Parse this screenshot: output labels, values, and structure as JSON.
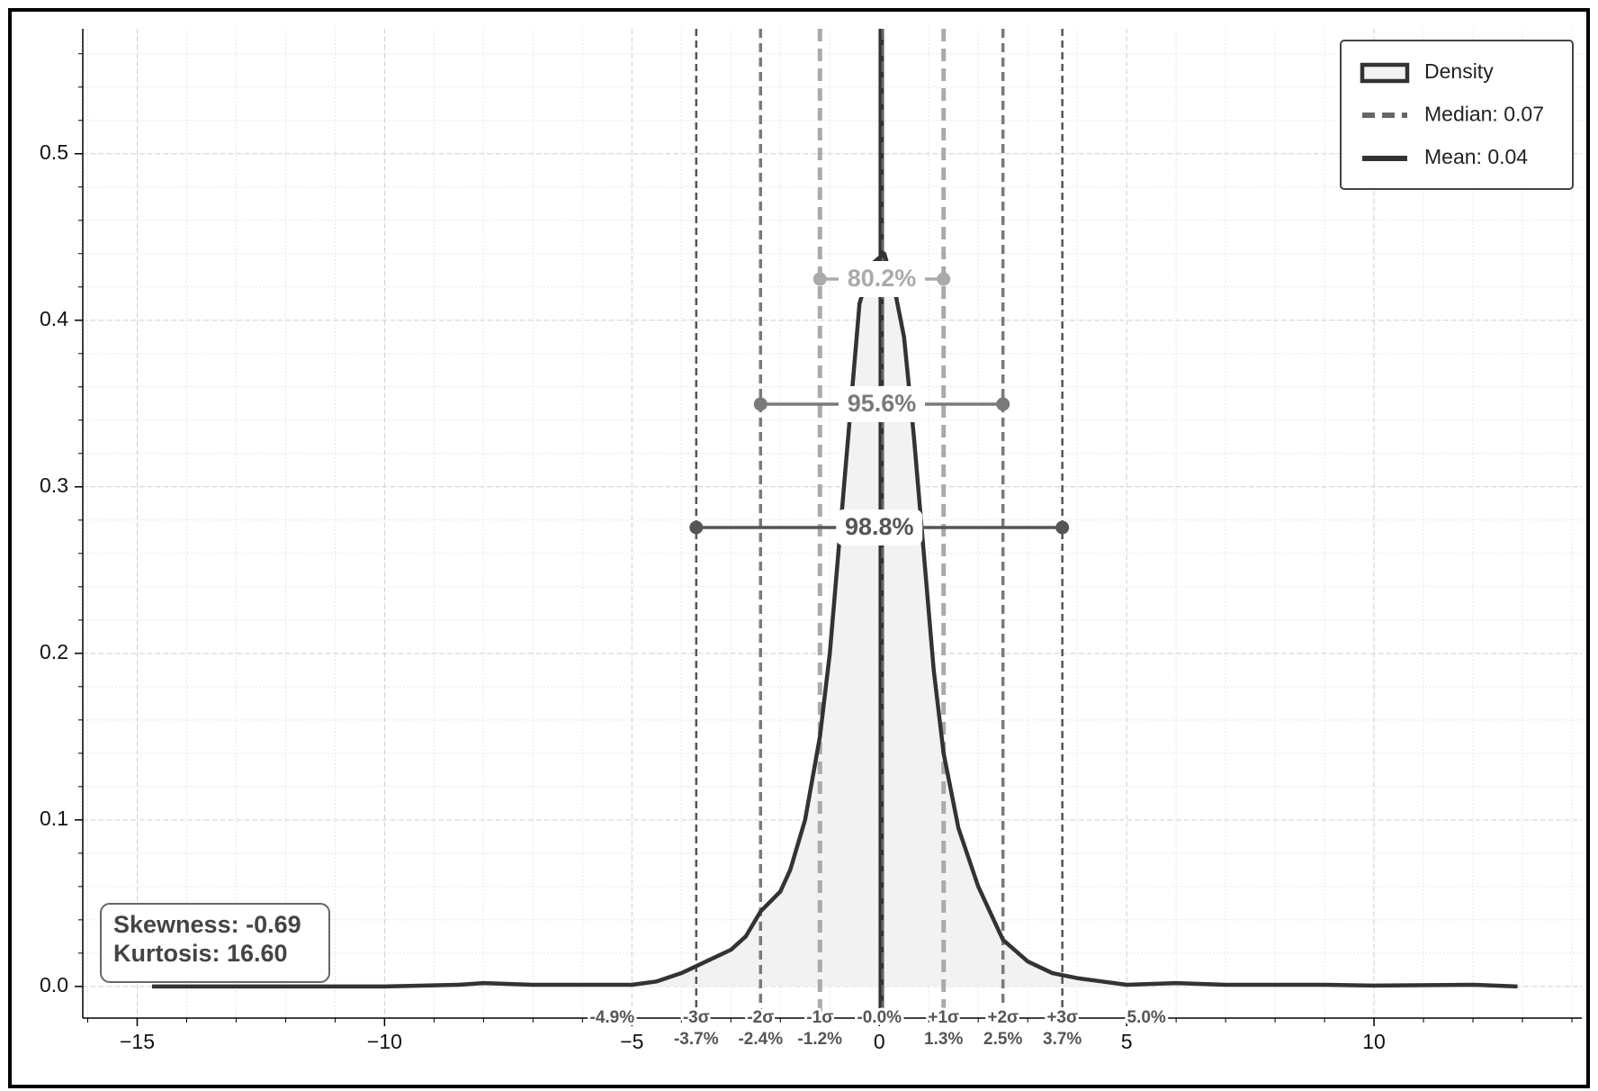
{
  "chart_data": {
    "type": "density",
    "xlim": [
      -16.1,
      14.2
    ],
    "ylim": [
      -0.019,
      0.575
    ],
    "xticks": [
      {
        "value": -15,
        "label": "−15"
      },
      {
        "value": -10,
        "label": "−10"
      },
      {
        "value": -5,
        "label": "−5"
      },
      0,
      5,
      10
    ],
    "yticks": [
      {
        "value": 0,
        "label": "0.0"
      },
      0.1,
      0.2,
      0.3,
      0.4,
      0.5
    ],
    "grid": true,
    "legend_loc": "upper right",
    "density": {
      "name": "Density",
      "color": "#333333",
      "fill": "#f2f2f2",
      "x": [
        -14.7,
        -12,
        -10,
        -8.5,
        -8,
        -7,
        -6,
        -5,
        -4.5,
        -4,
        -3.5,
        -3,
        -2.7,
        -2.4,
        -2,
        -1.8,
        -1.5,
        -1.2,
        -1,
        -0.8,
        -0.6,
        -0.4,
        -0.3,
        -0.1,
        0.1,
        0.3,
        0.5,
        0.7,
        0.9,
        1.1,
        1.3,
        1.6,
        2,
        2.5,
        3,
        3.5,
        4,
        4.5,
        5,
        6,
        7,
        8,
        9,
        10,
        12,
        12.9
      ],
      "values": [
        0,
        0,
        0,
        0.001,
        0.002,
        0.001,
        0.001,
        0.001,
        0.003,
        0.008,
        0.015,
        0.022,
        0.03,
        0.045,
        0.057,
        0.07,
        0.1,
        0.15,
        0.2,
        0.27,
        0.34,
        0.41,
        0.42,
        0.435,
        0.44,
        0.42,
        0.39,
        0.33,
        0.26,
        0.19,
        0.14,
        0.095,
        0.06,
        0.028,
        0.015,
        0.008,
        0.005,
        0.003,
        0.001,
        0.002,
        0.001,
        0.001,
        0.001,
        0.0005,
        0.001,
        0
      ]
    },
    "median": {
      "x": 0.07,
      "label": "Median: 0.07",
      "color": "#666666"
    },
    "mean": {
      "x": 0.04,
      "label": "Mean: 0.04",
      "color": "#333333"
    },
    "sigma_levels": [
      {
        "left": {
          "x": -1.2,
          "name": "-1σ",
          "value_label": "-1.2%"
        },
        "right": {
          "x": 1.3,
          "name": "+1σ",
          "value_label": "1.3%"
        },
        "color": "#aaaaaa",
        "interval_label": "80.2%"
      },
      {
        "left": {
          "x": -2.4,
          "name": "-2σ",
          "value_label": "-2.4%"
        },
        "right": {
          "x": 2.5,
          "name": "+2σ",
          "value_label": "2.5%"
        },
        "color": "#7a7a7a",
        "interval_label": "95.6%"
      },
      {
        "left": {
          "x": -3.7,
          "name": "-3σ",
          "value_label": "-3.7%"
        },
        "right": {
          "x": 3.7,
          "name": "+3σ",
          "value_label": "3.7%"
        },
        "color": "#555555",
        "interval_label": "98.8%"
      }
    ],
    "tail_labels": [
      {
        "x": -5.4,
        "label": "-4.9%"
      },
      {
        "x": 0,
        "label": "-0.0%"
      },
      {
        "x": 5.4,
        "label": "5.0%"
      }
    ],
    "stats": {
      "skewness": "Skewness: -0.69",
      "kurtosis": "Kurtosis: 16.60"
    }
  }
}
